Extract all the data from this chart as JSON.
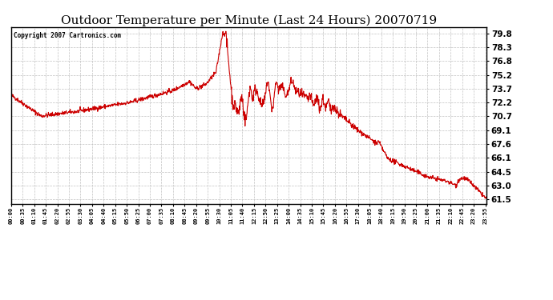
{
  "title": "Outdoor Temperature per Minute (Last 24 Hours) 20070719",
  "copyright_text": "Copyright 2007 Cartronics.com",
  "line_color": "#cc0000",
  "bg_color": "#ffffff",
  "plot_bg_color": "#ffffff",
  "grid_color": "#bbbbbb",
  "title_fontsize": 11,
  "yticks": [
    61.5,
    63.0,
    64.5,
    66.1,
    67.6,
    69.1,
    70.7,
    72.2,
    73.7,
    75.2,
    76.8,
    78.3,
    79.8
  ],
  "ylim": [
    61.0,
    80.5
  ],
  "x_labels": [
    "00:00",
    "00:35",
    "01:10",
    "01:45",
    "02:20",
    "02:55",
    "03:30",
    "04:05",
    "04:40",
    "05:15",
    "05:50",
    "06:25",
    "07:00",
    "07:35",
    "08:10",
    "08:45",
    "09:20",
    "09:55",
    "10:30",
    "11:05",
    "11:40",
    "12:15",
    "12:50",
    "13:25",
    "14:00",
    "14:35",
    "15:10",
    "15:45",
    "16:20",
    "16:55",
    "17:30",
    "18:05",
    "18:40",
    "19:15",
    "19:50",
    "20:25",
    "21:00",
    "21:35",
    "22:10",
    "22:45",
    "23:20",
    "23:55"
  ]
}
